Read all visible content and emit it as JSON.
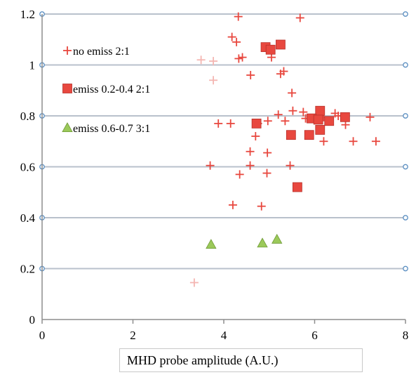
{
  "chart_data": {
    "type": "scatter",
    "xlabel": "MHD probe amplitude (A.U.)",
    "ylabel": "",
    "xlim": [
      0,
      8
    ],
    "ylim": [
      0,
      1.2
    ],
    "xticks": [
      "0",
      "2",
      "4",
      "6",
      "8"
    ],
    "yticks": [
      "0",
      "0.2",
      "0.4",
      "0.6",
      "0.8",
      "1",
      "1.2"
    ],
    "grid": "horizontal",
    "legend": "top-left, inside plot",
    "series": [
      {
        "name": "no emiss 2:1",
        "marker": "plus",
        "color": "#e8483f",
        "points": [
          [
            4.32,
            1.19
          ],
          [
            5.68,
            1.185
          ],
          [
            4.18,
            1.11
          ],
          [
            4.28,
            1.09
          ],
          [
            4.33,
            1.025
          ],
          [
            4.41,
            1.03
          ],
          [
            5.05,
            1.03
          ],
          [
            4.59,
            0.96
          ],
          [
            5.25,
            0.965
          ],
          [
            5.32,
            0.975
          ],
          [
            5.5,
            0.89
          ],
          [
            5.52,
            0.82
          ],
          [
            5.2,
            0.805
          ],
          [
            5.75,
            0.815
          ],
          [
            5.8,
            0.79
          ],
          [
            6.03,
            0.8
          ],
          [
            6.2,
            0.795
          ],
          [
            6.45,
            0.81
          ],
          [
            6.52,
            0.8
          ],
          [
            6.68,
            0.765
          ],
          [
            7.22,
            0.795
          ],
          [
            3.88,
            0.77
          ],
          [
            4.15,
            0.77
          ],
          [
            4.75,
            0.77
          ],
          [
            4.97,
            0.78
          ],
          [
            5.35,
            0.78
          ],
          [
            4.7,
            0.72
          ],
          [
            6.2,
            0.7
          ],
          [
            6.85,
            0.7
          ],
          [
            7.35,
            0.7
          ],
          [
            4.58,
            0.66
          ],
          [
            4.96,
            0.655
          ],
          [
            3.7,
            0.605
          ],
          [
            4.58,
            0.605
          ],
          [
            5.46,
            0.605
          ],
          [
            4.35,
            0.57
          ],
          [
            4.95,
            0.575
          ],
          [
            4.2,
            0.45
          ],
          [
            4.83,
            0.445
          ]
        ]
      },
      {
        "name": "no emiss 2:1 (faded)",
        "marker": "plus",
        "color": "#f4b6b2",
        "points": [
          [
            3.5,
            1.02
          ],
          [
            3.77,
            1.015
          ],
          [
            3.77,
            0.94
          ],
          [
            3.35,
            0.145
          ]
        ]
      },
      {
        "name": "emiss 0.2-0.4 2:1",
        "marker": "square",
        "color": "#e8483f",
        "points": [
          [
            4.92,
            1.07
          ],
          [
            5.03,
            1.06
          ],
          [
            5.25,
            1.08
          ],
          [
            4.72,
            0.77
          ],
          [
            6.12,
            0.82
          ],
          [
            5.93,
            0.79
          ],
          [
            6.08,
            0.785
          ],
          [
            6.32,
            0.78
          ],
          [
            6.67,
            0.795
          ],
          [
            6.12,
            0.745
          ],
          [
            5.48,
            0.725
          ],
          [
            5.88,
            0.725
          ],
          [
            5.62,
            0.52
          ]
        ]
      },
      {
        "name": "emiss 0.6-0.7 3:1",
        "marker": "triangle",
        "color": "#9bc95a",
        "points": [
          [
            3.72,
            0.295
          ],
          [
            4.85,
            0.3
          ],
          [
            5.17,
            0.315
          ]
        ]
      }
    ]
  }
}
